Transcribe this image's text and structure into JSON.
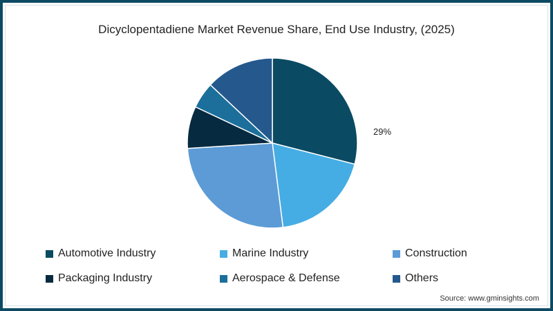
{
  "title": "Dicyclopentadiene Market Revenue Share, End Use Industry, (2025)",
  "source": "Source: www.gminsights.com",
  "border_color": "#0d4a63",
  "chart_data": {
    "type": "pie",
    "title": "Dicyclopentadiene Market Revenue Share, End Use Industry, (2025)",
    "categories": [
      "Automotive Industry",
      "Marine Industry",
      "Construction",
      "Packaging Industry",
      "Aerospace & Defense",
      "Others"
    ],
    "values": [
      29,
      19,
      26,
      8,
      5,
      13
    ],
    "colors": [
      "#0b4a63",
      "#45ade3",
      "#5c9bd6",
      "#062a3f",
      "#1c6f9b",
      "#25598d"
    ],
    "start_angle": "12 o'clock, clockwise",
    "annotations": [
      {
        "category": "Automotive Industry",
        "text": "29%"
      }
    ],
    "legend_position": "bottom"
  },
  "annotation_label": "29%",
  "legend": [
    {
      "label": "Automotive Industry",
      "color": "#0b4a63"
    },
    {
      "label": "Marine Industry",
      "color": "#45ade3"
    },
    {
      "label": "Construction",
      "color": "#5c9bd6"
    },
    {
      "label": "Packaging Industry",
      "color": "#062a3f"
    },
    {
      "label": "Aerospace & Defense",
      "color": "#1c6f9b"
    },
    {
      "label": "Others",
      "color": "#25598d"
    }
  ]
}
